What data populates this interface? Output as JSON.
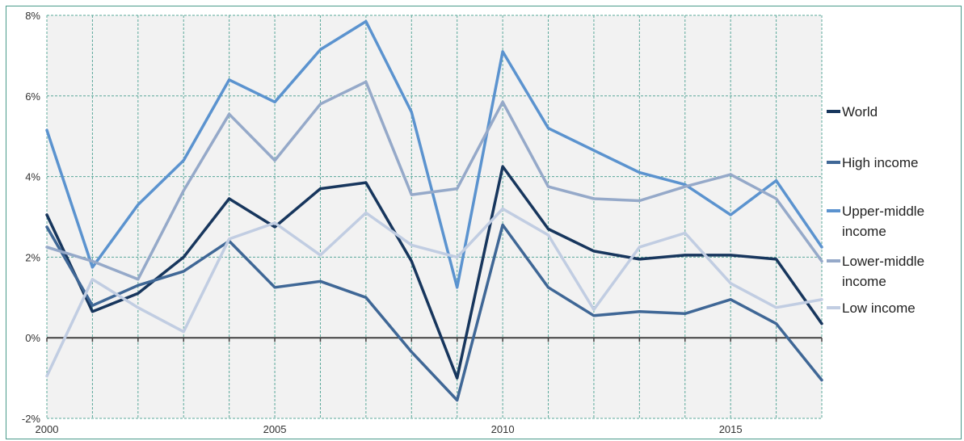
{
  "chart_data": {
    "type": "line",
    "title": "",
    "xlabel": "",
    "ylabel": "",
    "x": [
      2000,
      2001,
      2002,
      2003,
      2004,
      2005,
      2006,
      2007,
      2008,
      2009,
      2010,
      2011,
      2012,
      2013,
      2014,
      2015,
      2016,
      2017
    ],
    "xlim": [
      2000,
      2017
    ],
    "ylim": [
      -2,
      8
    ],
    "x_ticks": [
      {
        "value": 2000,
        "label": "2000"
      },
      {
        "value": 2005,
        "label": "2005"
      },
      {
        "value": 2010,
        "label": "2010"
      },
      {
        "value": 2015,
        "label": "2015"
      }
    ],
    "y_ticks": [
      {
        "value": -2,
        "label": "-2%"
      },
      {
        "value": 0,
        "label": "0%"
      },
      {
        "value": 2,
        "label": "2%"
      },
      {
        "value": 4,
        "label": "4%"
      },
      {
        "value": 6,
        "label": "6%"
      },
      {
        "value": 8,
        "label": "8%"
      }
    ],
    "grid": true,
    "legend_position": "right",
    "series": [
      {
        "name": "World",
        "color": "#17365d",
        "values": [
          3.05,
          0.65,
          1.1,
          2.0,
          3.45,
          2.75,
          3.7,
          3.85,
          1.9,
          -1.0,
          4.25,
          2.7,
          2.15,
          1.95,
          2.05,
          2.05,
          1.95,
          0.35
        ],
        "legend_lines": [
          "World"
        ]
      },
      {
        "name": "High income",
        "color": "#3f6796",
        "values": [
          2.75,
          0.8,
          1.3,
          1.65,
          2.4,
          1.25,
          1.4,
          1.0,
          -0.35,
          -1.55,
          2.8,
          1.25,
          0.55,
          0.65,
          0.6,
          0.95,
          0.35,
          -1.05
        ],
        "legend_lines": [
          "High income"
        ]
      },
      {
        "name": "Upper-middle income",
        "color": "#5b93cf",
        "values": [
          5.15,
          1.75,
          3.3,
          4.4,
          6.4,
          5.85,
          7.15,
          7.85,
          5.6,
          1.25,
          7.1,
          5.2,
          4.65,
          4.1,
          3.8,
          3.05,
          3.9,
          2.25
        ],
        "legend_lines": [
          "Upper-middle",
          "income"
        ]
      },
      {
        "name": "Lower-middle income",
        "color": "#95a9c9",
        "values": [
          2.25,
          1.9,
          1.45,
          3.65,
          5.55,
          4.4,
          5.8,
          6.35,
          3.55,
          3.7,
          5.85,
          3.75,
          3.45,
          3.4,
          3.75,
          4.05,
          3.45,
          1.9
        ],
        "legend_lines": [
          "Lower-middle",
          "income"
        ]
      },
      {
        "name": "Low income",
        "color": "#c1cde2",
        "values": [
          -0.95,
          1.45,
          0.75,
          0.15,
          2.45,
          2.85,
          2.05,
          3.1,
          2.3,
          2.0,
          3.2,
          2.55,
          0.7,
          2.25,
          2.6,
          1.35,
          0.75,
          0.95
        ],
        "legend_lines": [
          "Low income"
        ]
      }
    ]
  }
}
